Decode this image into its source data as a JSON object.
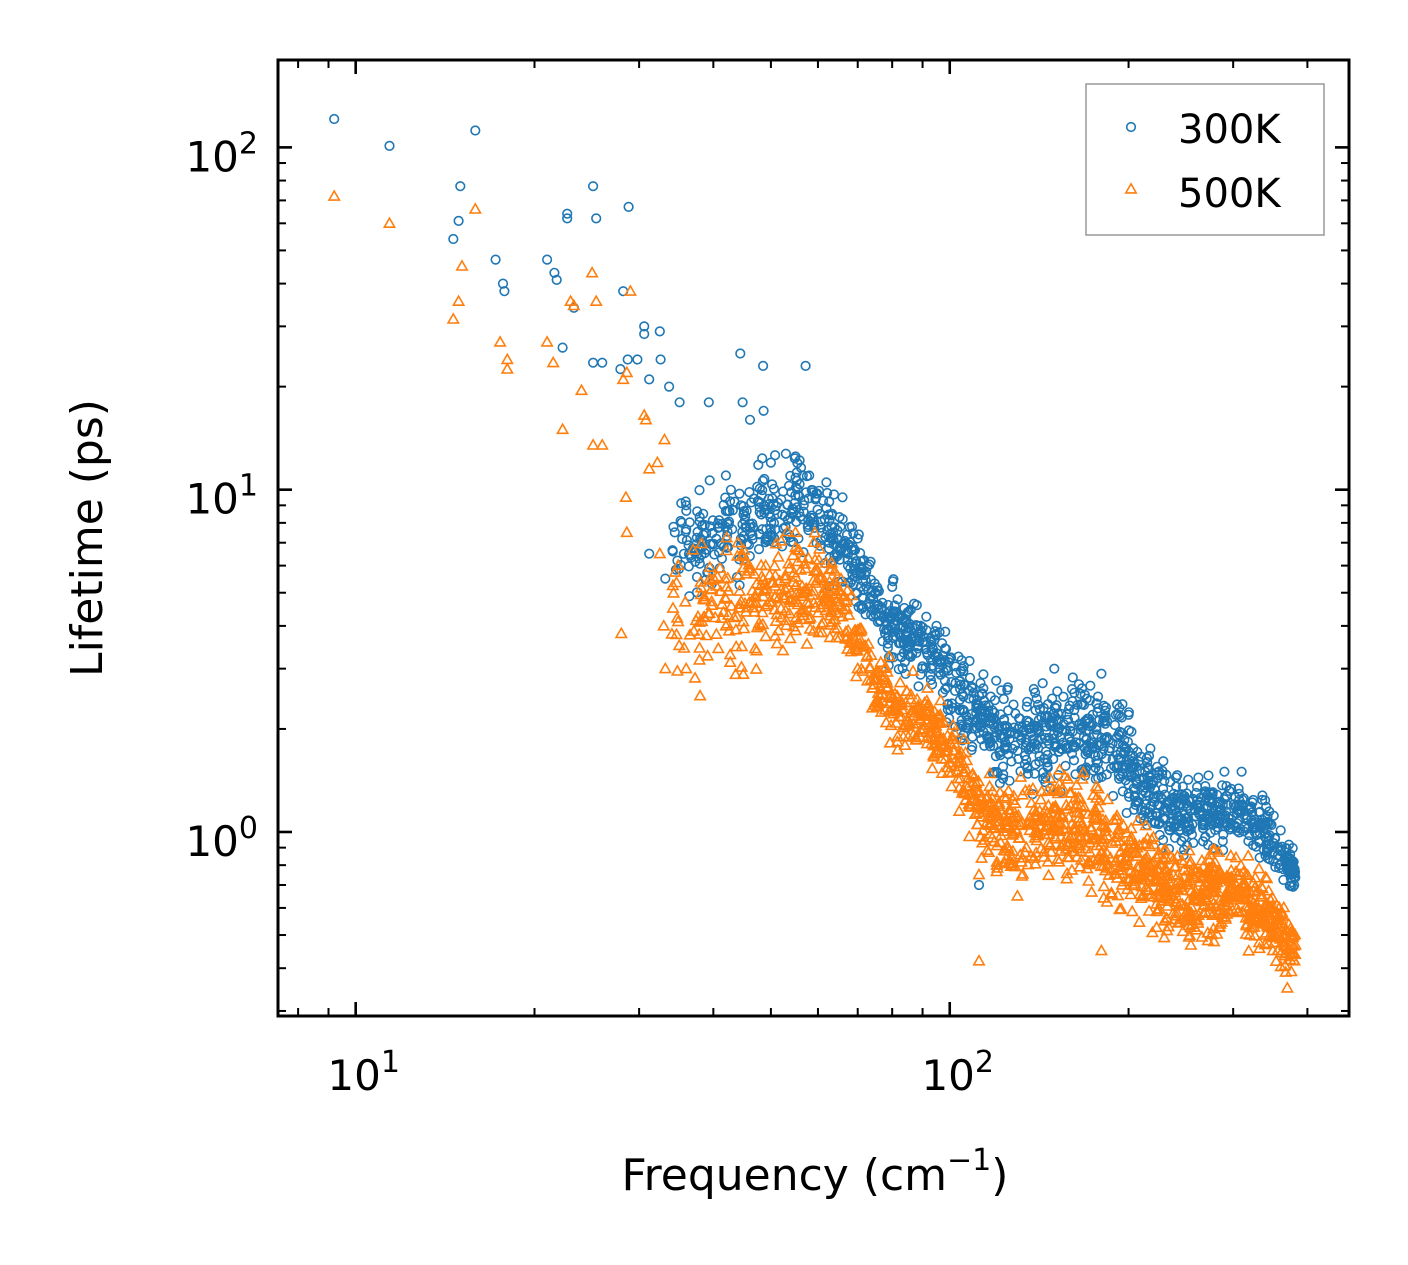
{
  "chart_data": {
    "type": "scatter",
    "xlabel": "Frequency (cm",
    "xlabel_sup": "−1",
    "xlabel_close": ")",
    "ylabel": "Lifetime (ps)",
    "xscale": "log",
    "yscale": "log",
    "xlim": [
      7.4,
      470
    ],
    "ylim": [
      0.29,
      180
    ],
    "x_ticks": [
      {
        "base": "10",
        "exp": "1",
        "value": 10
      },
      {
        "base": "10",
        "exp": "2",
        "value": 100
      }
    ],
    "y_ticks": [
      {
        "base": "10",
        "exp": "0",
        "value": 1
      },
      {
        "base": "10",
        "exp": "1",
        "value": 10
      },
      {
        "base": "10",
        "exp": "2",
        "value": 100
      }
    ],
    "legend_position": "top-right",
    "series": [
      {
        "name": "300K",
        "marker": "circle",
        "color": "#1f77b4",
        "sample_points": [
          [
            9.2,
            121
          ],
          [
            11.4,
            101
          ],
          [
            15,
            77
          ],
          [
            15.9,
            112
          ],
          [
            14.6,
            54
          ],
          [
            14.9,
            61
          ],
          [
            17.2,
            47
          ],
          [
            17.7,
            40
          ],
          [
            17.8,
            38
          ],
          [
            21,
            47
          ],
          [
            21.6,
            43
          ],
          [
            21.8,
            41
          ],
          [
            22.7,
            64
          ],
          [
            22.7,
            62
          ],
          [
            22.3,
            26
          ],
          [
            23.3,
            34
          ],
          [
            25.1,
            77
          ],
          [
            25.4,
            62
          ],
          [
            25.1,
            23.5
          ],
          [
            26,
            23.5
          ],
          [
            28.8,
            67
          ],
          [
            28.2,
            38
          ],
          [
            27.9,
            22.5
          ],
          [
            28.7,
            24
          ],
          [
            30.6,
            30
          ],
          [
            30.6,
            28.5
          ],
          [
            31.2,
            21
          ],
          [
            32.5,
            29
          ],
          [
            32.6,
            24
          ],
          [
            33.7,
            20
          ],
          [
            35.1,
            18
          ],
          [
            39.3,
            18
          ],
          [
            44.4,
            25
          ],
          [
            44.8,
            18
          ],
          [
            46.1,
            16
          ],
          [
            48.5,
            23
          ],
          [
            57.2,
            23
          ],
          [
            48.6,
            17
          ],
          [
            29.8,
            24
          ],
          [
            31.2,
            6.5
          ],
          [
            33.2,
            5.5
          ],
          [
            36,
            9
          ],
          [
            42,
            11
          ],
          [
            50,
            12
          ],
          [
            55,
            12.5
          ],
          [
            58,
            11
          ],
          [
            62,
            10.5
          ],
          [
            66,
            9.5
          ],
          [
            70,
            7.2
          ],
          [
            75,
            5
          ],
          [
            80,
            5.2
          ],
          [
            88,
            4.6
          ],
          [
            95,
            4
          ],
          [
            105,
            3
          ],
          [
            112,
            2.5
          ],
          [
            125,
            2.6
          ],
          [
            135,
            2.4
          ],
          [
            150,
            3
          ],
          [
            165,
            2.7
          ],
          [
            180,
            2.9
          ],
          [
            200,
            2.2
          ],
          [
            215,
            1.6
          ],
          [
            235,
            1.4
          ],
          [
            260,
            1.3
          ],
          [
            290,
            1.5
          ],
          [
            310,
            1.5
          ],
          [
            340,
            1.1
          ],
          [
            370,
            0.85
          ],
          [
            380,
            0.7
          ],
          [
            112,
            0.7
          ]
        ]
      },
      {
        "name": "500K",
        "marker": "triangle",
        "color": "#ff7f0e",
        "sample_points": [
          [
            9.2,
            72
          ],
          [
            11.4,
            60
          ],
          [
            15.9,
            66
          ],
          [
            15.1,
            45
          ],
          [
            14.9,
            35.5
          ],
          [
            14.6,
            31.5
          ],
          [
            17.5,
            27
          ],
          [
            18,
            24
          ],
          [
            18,
            22.5
          ],
          [
            21,
            27
          ],
          [
            21.5,
            23.5
          ],
          [
            22.3,
            15
          ],
          [
            23,
            35.5
          ],
          [
            23.3,
            34.5
          ],
          [
            24,
            19.5
          ],
          [
            25,
            43
          ],
          [
            25.4,
            35.5
          ],
          [
            25.1,
            13.5
          ],
          [
            26,
            13.5
          ],
          [
            29,
            38
          ],
          [
            28.6,
            22
          ],
          [
            28.2,
            21
          ],
          [
            28.5,
            9.5
          ],
          [
            28.6,
            7.5
          ],
          [
            30.6,
            16.5
          ],
          [
            30.8,
            16
          ],
          [
            31.2,
            11.5
          ],
          [
            32.2,
            12
          ],
          [
            33.1,
            14
          ],
          [
            32.5,
            6.5
          ],
          [
            33,
            4
          ],
          [
            33.2,
            3
          ],
          [
            28,
            3.8
          ],
          [
            36,
            3
          ],
          [
            38,
            2.5
          ],
          [
            42,
            4
          ],
          [
            44,
            7
          ],
          [
            48,
            4
          ],
          [
            52,
            4.5
          ],
          [
            55,
            7.5
          ],
          [
            60,
            5.8
          ],
          [
            65,
            4.8
          ],
          [
            70,
            3
          ],
          [
            75,
            2.4
          ],
          [
            80,
            2.3
          ],
          [
            85,
            2.1
          ],
          [
            90,
            2
          ],
          [
            98,
            1.8
          ],
          [
            105,
            1.3
          ],
          [
            112,
            0.75
          ],
          [
            112,
            0.42
          ],
          [
            120,
            0.8
          ],
          [
            130,
            0.65
          ],
          [
            145,
            1.1
          ],
          [
            160,
            1.3
          ],
          [
            175,
            1.1
          ],
          [
            180,
            0.45
          ],
          [
            195,
            0.7
          ],
          [
            210,
            0.75
          ],
          [
            230,
            0.55
          ],
          [
            250,
            0.55
          ],
          [
            280,
            0.7
          ],
          [
            300,
            0.65
          ],
          [
            320,
            0.5
          ],
          [
            350,
            0.45
          ],
          [
            370,
            0.35
          ],
          [
            380,
            0.42
          ]
        ]
      }
    ]
  }
}
